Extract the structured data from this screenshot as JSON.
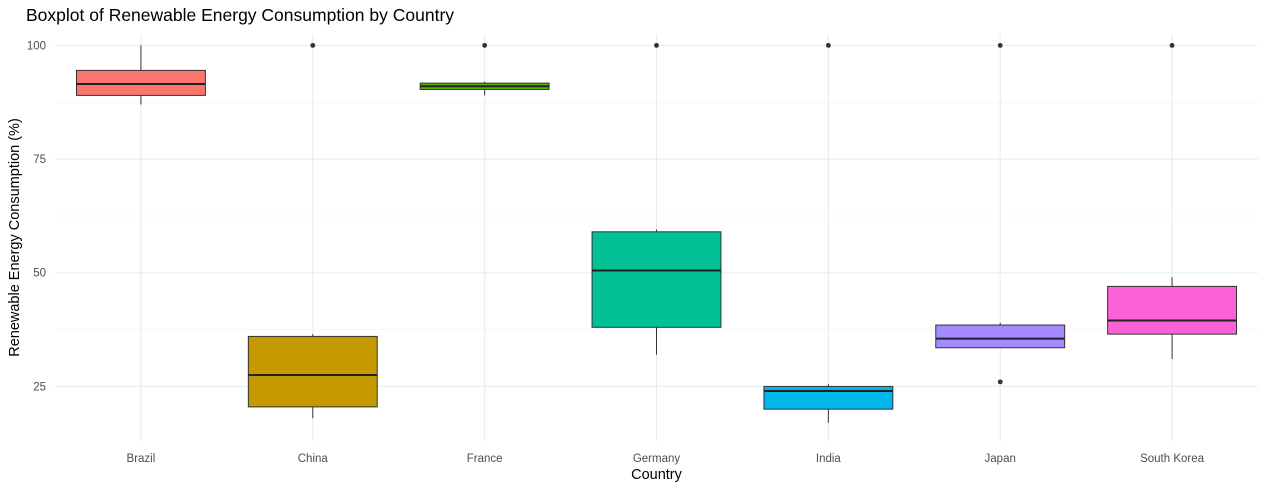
{
  "chart_data": {
    "type": "boxplot",
    "title": "Boxplot of Renewable Energy Consumption by Country",
    "xlabel": "Country",
    "ylabel": "Renewable Energy Consumption (%)",
    "ylim": [
      13,
      102.5
    ],
    "yticks": [
      "25",
      "50",
      "75",
      "100"
    ],
    "grid": true,
    "legend": "none",
    "categories": [
      "Brazil",
      "China",
      "France",
      "Germany",
      "India",
      "Japan",
      "South Korea"
    ],
    "boxes": [
      {
        "category": "Brazil",
        "whisker_low": 87,
        "q1": 89,
        "median": 91.5,
        "q3": 94.5,
        "whisker_high": 100,
        "outliers": [],
        "color": "#F8766D"
      },
      {
        "category": "China",
        "whisker_low": 18,
        "q1": 20.5,
        "median": 27.5,
        "q3": 36,
        "whisker_high": 36.5,
        "outliers": [
          100
        ],
        "color": "#C49A00"
      },
      {
        "category": "France",
        "whisker_low": 89,
        "q1": 90.3,
        "median": 91,
        "q3": 91.7,
        "whisker_high": 92,
        "outliers": [
          100
        ],
        "color": "#53B400"
      },
      {
        "category": "Germany",
        "whisker_low": 32,
        "q1": 38,
        "median": 50.5,
        "q3": 59,
        "whisker_high": 59.5,
        "outliers": [
          100
        ],
        "color": "#00C094"
      },
      {
        "category": "India",
        "whisker_low": 17,
        "q1": 20,
        "median": 24,
        "q3": 25,
        "whisker_high": 25.5,
        "outliers": [
          100
        ],
        "color": "#00B6EB"
      },
      {
        "category": "Japan",
        "whisker_low": 33.5,
        "q1": 33.5,
        "median": 35.5,
        "q3": 38.5,
        "whisker_high": 39,
        "outliers": [
          26,
          100
        ],
        "color": "#A58AFF"
      },
      {
        "category": "South Korea",
        "whisker_low": 31,
        "q1": 36.5,
        "median": 39.5,
        "q3": 47,
        "whisker_high": 49,
        "outliers": [
          100
        ],
        "color": "#FB61D7"
      }
    ]
  }
}
